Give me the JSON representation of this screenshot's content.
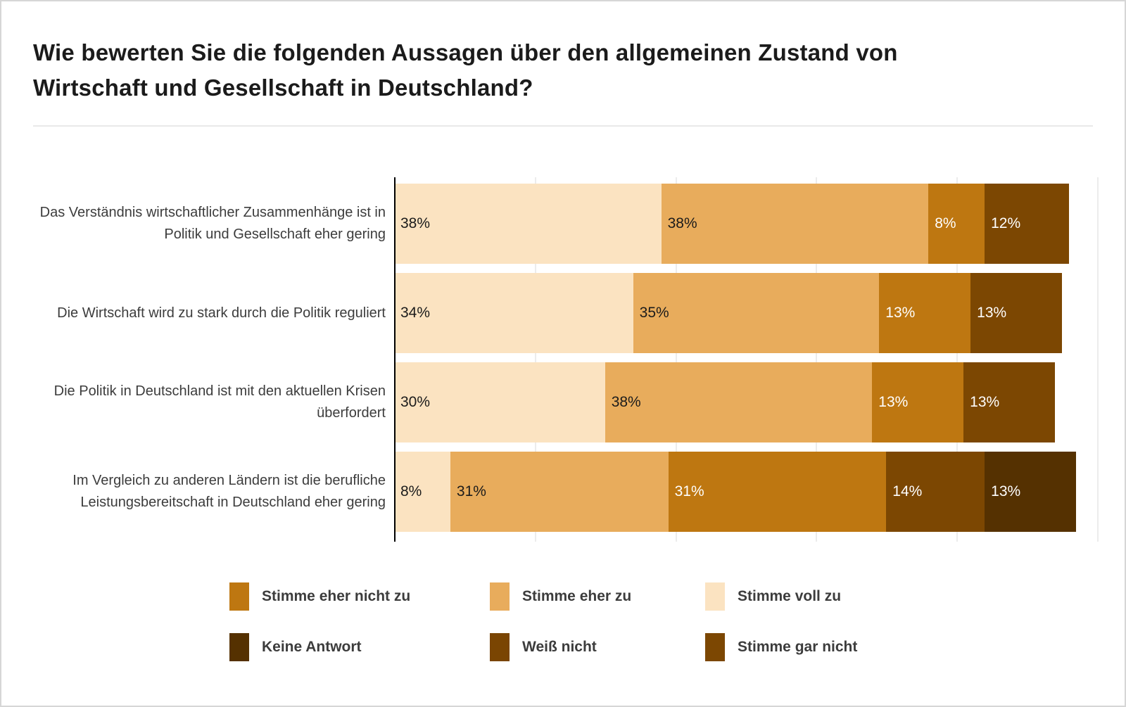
{
  "title": "Wie bewerten Sie die folgenden Aussagen über den allgemeinen Zustand von Wirtschaft und Gesellschaft in Deutschland?",
  "colors": {
    "stimme_voll_zu": "#fbe3c1",
    "stimme_eher_zu": "#e8ac5c",
    "stimme_eher_nicht_zu": "#be7711",
    "stimme_gar_nicht": "#7c4702",
    "weiss_nicht": "#7a4502",
    "keine_antwort": "#553101",
    "axis": "#000000",
    "gridline": "#ececec",
    "label_dark": "#1b1b1b",
    "label_light": "#ffffff",
    "title_text": "#1b1b1b",
    "category_text": "#3c3c3c"
  },
  "chart_data": {
    "type": "bar",
    "orientation": "horizontal",
    "stacked": true,
    "value_unit": "%",
    "xlim": [
      0,
      100
    ],
    "gridlines_pct": [
      20,
      40,
      60,
      80,
      100
    ],
    "grid": true,
    "categories": [
      "Das Verständnis wirtschaftlicher Zusammenhänge ist in Politik und Gesellschaft eher gering",
      "Die Wirtschaft wird zu stark durch die Politik reguliert",
      "Die Politik in Deutschland ist mit den aktuellen Krisen überfordert",
      "Im Vergleich zu anderen Ländern ist die berufliche Leistungsbereitschaft in Deutschland eher gering"
    ],
    "series": [
      {
        "name": "Stimme voll zu",
        "color_key": "stimme_voll_zu",
        "label_style": "dark",
        "values": [
          38,
          34,
          30,
          8
        ]
      },
      {
        "name": "Stimme eher zu",
        "color_key": "stimme_eher_zu",
        "label_style": "dark",
        "values": [
          38,
          35,
          38,
          31
        ]
      },
      {
        "name": "Stimme eher nicht zu",
        "color_key": "stimme_eher_nicht_zu",
        "label_style": "light",
        "values": [
          8,
          13,
          13,
          31
        ]
      },
      {
        "name": "Stimme gar nicht",
        "color_key": "stimme_gar_nicht",
        "label_style": "light",
        "values": [
          12,
          13,
          13,
          14
        ]
      },
      {
        "name": "Weiß nicht",
        "color_key": "weiss_nicht",
        "label_style": "light",
        "values": [
          0,
          0,
          0,
          0
        ]
      },
      {
        "name": "Keine Antwort",
        "color_key": "keine_antwort",
        "label_style": "light",
        "values": [
          0,
          0,
          0,
          13
        ]
      }
    ],
    "legend_position": "bottom"
  },
  "legend": {
    "items": [
      {
        "label": "Stimme eher nicht zu",
        "color_key": "stimme_eher_nicht_zu"
      },
      {
        "label": "Stimme eher zu",
        "color_key": "stimme_eher_zu"
      },
      {
        "label": "Stimme voll zu",
        "color_key": "stimme_voll_zu"
      },
      {
        "label": "Keine Antwort",
        "color_key": "keine_antwort"
      },
      {
        "label": "Weiß nicht",
        "color_key": "weiss_nicht"
      },
      {
        "label": "Stimme gar nicht",
        "color_key": "stimme_gar_nicht"
      }
    ]
  }
}
